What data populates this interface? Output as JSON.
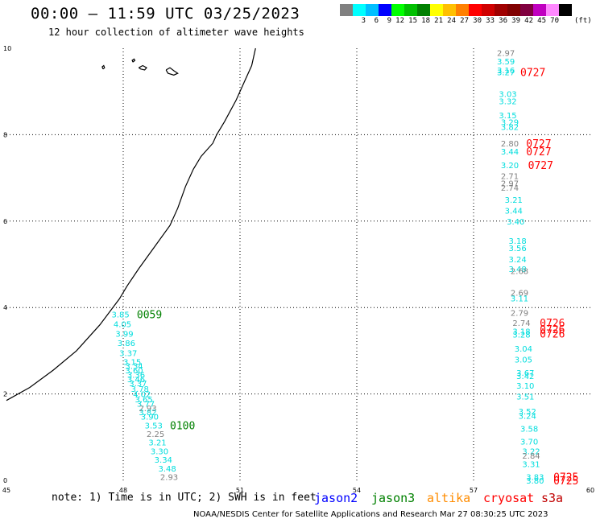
{
  "header": {
    "title": "00:00 – 11:59 UTC 03/25/2023",
    "subtitle": "12 hour collection of altimeter wave heights"
  },
  "legend": {
    "colors": [
      "#808080",
      "#00ffff",
      "#00bfff",
      "#0000ff",
      "#00ff00",
      "#00c000",
      "#008000",
      "#ffff00",
      "#ffc000",
      "#ff8000",
      "#ff0000",
      "#d00000",
      "#a00000",
      "#800000",
      "#800040",
      "#c000c0",
      "#ff88ff",
      "#000000"
    ],
    "labels": [
      "3",
      "6",
      "9",
      "12",
      "15",
      "18",
      "21",
      "24",
      "27",
      "30",
      "33",
      "36",
      "39",
      "42",
      "45",
      "70"
    ],
    "unit": "(ft)"
  },
  "axes": {
    "x_ticks": [
      "45",
      "48",
      "51",
      "54",
      "57",
      "60"
    ],
    "y_ticks": [
      "0",
      "2",
      "4",
      "6",
      "8",
      "10"
    ]
  },
  "wave_labels": [
    {
      "v": "2.97",
      "c": "#808080",
      "lat": 9.9,
      "lon": 57.6
    },
    {
      "v": "3.59",
      "c": "#00dddd",
      "lat": 9.7,
      "lon": 57.6
    },
    {
      "v": "3.16",
      "c": "#00dddd",
      "lat": 9.5,
      "lon": 57.6
    },
    {
      "v": "3.27",
      "c": "#00dddd",
      "lat": 9.45,
      "lon": 57.6
    },
    {
      "v": "3.03",
      "c": "#00dddd",
      "lat": 8.95,
      "lon": 57.65
    },
    {
      "v": "3.32",
      "c": "#00dddd",
      "lat": 8.78,
      "lon": 57.65
    },
    {
      "v": "3.15",
      "c": "#00dddd",
      "lat": 8.45,
      "lon": 57.65
    },
    {
      "v": "3.29",
      "c": "#00dddd",
      "lat": 8.3,
      "lon": 57.7
    },
    {
      "v": "3.82",
      "c": "#00dddd",
      "lat": 8.18,
      "lon": 57.7
    },
    {
      "v": "2.80",
      "c": "#808080",
      "lat": 7.8,
      "lon": 57.7
    },
    {
      "v": "3.44",
      "c": "#00dddd",
      "lat": 7.62,
      "lon": 57.7
    },
    {
      "v": "3.20",
      "c": "#00dddd",
      "lat": 7.3,
      "lon": 57.7
    },
    {
      "v": "2.71",
      "c": "#808080",
      "lat": 7.05,
      "lon": 57.7
    },
    {
      "v": "2.97",
      "c": "#808080",
      "lat": 6.88,
      "lon": 57.7
    },
    {
      "v": "2.74",
      "c": "#808080",
      "lat": 6.78,
      "lon": 57.7
    },
    {
      "v": "3.21",
      "c": "#00dddd",
      "lat": 6.5,
      "lon": 57.8
    },
    {
      "v": "3.44",
      "c": "#00dddd",
      "lat": 6.25,
      "lon": 57.8
    },
    {
      "v": "3.40",
      "c": "#00dddd",
      "lat": 6.0,
      "lon": 57.85
    },
    {
      "v": "3.18",
      "c": "#00dddd",
      "lat": 5.55,
      "lon": 57.9
    },
    {
      "v": "3.56",
      "c": "#00dddd",
      "lat": 5.38,
      "lon": 57.9
    },
    {
      "v": "3.24",
      "c": "#00dddd",
      "lat": 5.12,
      "lon": 57.9
    },
    {
      "v": "3.48",
      "c": "#00dddd",
      "lat": 4.9,
      "lon": 57.9
    },
    {
      "v": "2.68",
      "c": "#808080",
      "lat": 4.85,
      "lon": 57.95
    },
    {
      "v": "2.69",
      "c": "#808080",
      "lat": 4.35,
      "lon": 57.95
    },
    {
      "v": "3.11",
      "c": "#00dddd",
      "lat": 4.22,
      "lon": 57.95
    },
    {
      "v": "2.79",
      "c": "#808080",
      "lat": 3.88,
      "lon": 57.95
    },
    {
      "v": "2.74",
      "c": "#808080",
      "lat": 3.65,
      "lon": 58.0
    },
    {
      "v": "3.18",
      "c": "#00dddd",
      "lat": 3.45,
      "lon": 58.0
    },
    {
      "v": "3.28",
      "c": "#00dddd",
      "lat": 3.38,
      "lon": 58.0
    },
    {
      "v": "3.04",
      "c": "#00dddd",
      "lat": 3.05,
      "lon": 58.05
    },
    {
      "v": "3.05",
      "c": "#00dddd",
      "lat": 2.8,
      "lon": 58.05
    },
    {
      "v": "3.67",
      "c": "#00dddd",
      "lat": 2.5,
      "lon": 58.1
    },
    {
      "v": "3.42",
      "c": "#00dddd",
      "lat": 2.42,
      "lon": 58.1
    },
    {
      "v": "3.10",
      "c": "#00dddd",
      "lat": 2.2,
      "lon": 58.1
    },
    {
      "v": "3.51",
      "c": "#00dddd",
      "lat": 1.95,
      "lon": 58.1
    },
    {
      "v": "3.52",
      "c": "#00dddd",
      "lat": 1.6,
      "lon": 58.15
    },
    {
      "v": "3.24",
      "c": "#00dddd",
      "lat": 1.5,
      "lon": 58.15
    },
    {
      "v": "3.58",
      "c": "#00dddd",
      "lat": 1.2,
      "lon": 58.2
    },
    {
      "v": "3.70",
      "c": "#00dddd",
      "lat": 0.9,
      "lon": 58.2
    },
    {
      "v": "3.22",
      "c": "#00dddd",
      "lat": 0.68,
      "lon": 58.25
    },
    {
      "v": "2.84",
      "c": "#808080",
      "lat": 0.58,
      "lon": 58.25
    },
    {
      "v": "3.31",
      "c": "#00dddd",
      "lat": 0.38,
      "lon": 58.25
    },
    {
      "v": "3.83",
      "c": "#00dddd",
      "lat": 0.08,
      "lon": 58.35
    },
    {
      "v": "3.80",
      "c": "#00dddd",
      "lat": 0.0,
      "lon": 58.35
    },
    {
      "v": "3.85",
      "c": "#00dddd",
      "lat": 3.85,
      "lon": 47.7
    },
    {
      "v": "4.05",
      "c": "#00dddd",
      "lat": 3.62,
      "lon": 47.75
    },
    {
      "v": "3.99",
      "c": "#00dddd",
      "lat": 3.4,
      "lon": 47.8
    },
    {
      "v": "3.86",
      "c": "#00dddd",
      "lat": 3.18,
      "lon": 47.85
    },
    {
      "v": "3.37",
      "c": "#00dddd",
      "lat": 2.95,
      "lon": 47.9
    },
    {
      "v": "3.15",
      "c": "#00dddd",
      "lat": 2.75,
      "lon": 48.0
    },
    {
      "v": "3.34",
      "c": "#00dddd",
      "lat": 2.65,
      "lon": 48.05
    },
    {
      "v": "3.60",
      "c": "#00dddd",
      "lat": 2.55,
      "lon": 48.05
    },
    {
      "v": "3.36",
      "c": "#00dddd",
      "lat": 2.45,
      "lon": 48.1
    },
    {
      "v": "3.46",
      "c": "#00dddd",
      "lat": 2.35,
      "lon": 48.1
    },
    {
      "v": "3.37",
      "c": "#00dddd",
      "lat": 2.25,
      "lon": 48.15
    },
    {
      "v": "3.78",
      "c": "#00dddd",
      "lat": 2.12,
      "lon": 48.2
    },
    {
      "v": "4.02",
      "c": "#00dddd",
      "lat": 2.0,
      "lon": 48.25
    },
    {
      "v": "3.65",
      "c": "#00dddd",
      "lat": 1.88,
      "lon": 48.3
    },
    {
      "v": "3.77",
      "c": "#00dddd",
      "lat": 1.78,
      "lon": 48.35
    },
    {
      "v": "2.93",
      "c": "#808080",
      "lat": 1.68,
      "lon": 48.4
    },
    {
      "v": "3.82",
      "c": "#00dddd",
      "lat": 1.58,
      "lon": 48.4
    },
    {
      "v": "3.90",
      "c": "#00dddd",
      "lat": 1.48,
      "lon": 48.45
    },
    {
      "v": "3.53",
      "c": "#00dddd",
      "lat": 1.28,
      "lon": 48.55
    },
    {
      "v": "2.25",
      "c": "#808080",
      "lat": 1.08,
      "lon": 48.6
    },
    {
      "v": "3.21",
      "c": "#00dddd",
      "lat": 0.88,
      "lon": 48.65
    },
    {
      "v": "3.30",
      "c": "#00dddd",
      "lat": 0.68,
      "lon": 48.7
    },
    {
      "v": "3.34",
      "c": "#00dddd",
      "lat": 0.48,
      "lon": 48.8
    },
    {
      "v": "3.48",
      "c": "#00dddd",
      "lat": 0.28,
      "lon": 48.9
    },
    {
      "v": "2.93",
      "c": "#808080",
      "lat": 0.08,
      "lon": 48.95
    }
  ],
  "time_labels": [
    {
      "t": "0727",
      "c": "#ff0000",
      "lat": 9.45,
      "lon": 58.2
    },
    {
      "t": "0727",
      "c": "#ff0000",
      "lat": 7.8,
      "lon": 58.35
    },
    {
      "t": "0727",
      "c": "#ff0000",
      "lat": 7.62,
      "lon": 58.35
    },
    {
      "t": "0727",
      "c": "#ff0000",
      "lat": 7.3,
      "lon": 58.4
    },
    {
      "t": "0726",
      "c": "#ff0000",
      "lat": 3.65,
      "lon": 58.7
    },
    {
      "t": "0726",
      "c": "#ff0000",
      "lat": 3.5,
      "lon": 58.7
    },
    {
      "t": "0726",
      "c": "#ff0000",
      "lat": 3.4,
      "lon": 58.7
    },
    {
      "t": "0725",
      "c": "#ff0000",
      "lat": 0.08,
      "lon": 59.05
    },
    {
      "t": "0725",
      "c": "#ff0000",
      "lat": 0.0,
      "lon": 59.05
    },
    {
      "t": "0059",
      "c": "#008000",
      "lat": 3.85,
      "lon": 48.35
    },
    {
      "t": "0100",
      "c": "#008000",
      "lat": 1.28,
      "lon": 49.2
    }
  ],
  "coast": [
    [
      45.0,
      1.85
    ],
    [
      45.6,
      2.15
    ],
    [
      46.2,
      2.55
    ],
    [
      46.8,
      3.0
    ],
    [
      47.4,
      3.6
    ],
    [
      47.9,
      4.2
    ],
    [
      48.1,
      4.5
    ],
    [
      48.4,
      4.9
    ],
    [
      48.8,
      5.4
    ],
    [
      49.2,
      5.9
    ],
    [
      49.4,
      6.3
    ],
    [
      49.6,
      6.8
    ],
    [
      49.8,
      7.2
    ],
    [
      50.0,
      7.5
    ],
    [
      50.3,
      7.8
    ],
    [
      50.4,
      8.0
    ],
    [
      50.6,
      8.3
    ],
    [
      50.9,
      8.8
    ],
    [
      51.1,
      9.2
    ],
    [
      51.3,
      9.6
    ],
    [
      51.4,
      10.0
    ]
  ],
  "islands": [
    [
      [
        47.48,
        9.52
      ],
      [
        47.52,
        9.55
      ],
      [
        47.5,
        9.6
      ],
      [
        47.46,
        9.57
      ],
      [
        47.48,
        9.52
      ]
    ],
    [
      [
        48.4,
        9.55
      ],
      [
        48.5,
        9.6
      ],
      [
        48.6,
        9.55
      ],
      [
        48.55,
        9.5
      ],
      [
        48.45,
        9.52
      ],
      [
        48.4,
        9.55
      ]
    ],
    [
      [
        49.1,
        9.5
      ],
      [
        49.2,
        9.55
      ],
      [
        49.3,
        9.48
      ],
      [
        49.4,
        9.42
      ],
      [
        49.3,
        9.38
      ],
      [
        49.15,
        9.42
      ],
      [
        49.1,
        9.5
      ]
    ],
    [
      [
        48.25,
        9.68
      ],
      [
        48.3,
        9.72
      ],
      [
        48.28,
        9.75
      ],
      [
        48.23,
        9.72
      ],
      [
        48.25,
        9.68
      ]
    ]
  ],
  "footnote": "note:  1) Time is in UTC;  2) SWH is in feet",
  "missions": [
    {
      "name": "jason2",
      "color": "#0000ff"
    },
    {
      "name": "jason3",
      "color": "#008000"
    },
    {
      "name": "altika",
      "color": "#ff8c00"
    },
    {
      "name": "cryosat",
      "color": "#ff0000"
    },
    {
      "name": "s3a",
      "color": "#c00000"
    }
  ],
  "credit": "NOAA/NESDIS Center for Satellite Applications and Research    Mar 27 08:30:25 UTC 2023"
}
